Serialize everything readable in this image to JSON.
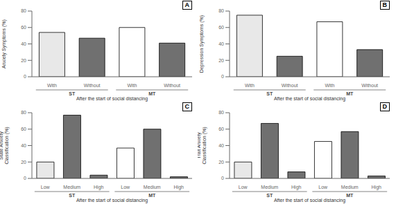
{
  "chart_data": [
    {
      "type": "bar",
      "title": "A",
      "ylabel": "Anxiety Symptoms (%)",
      "xlabel": "After the start of social distancing",
      "categories": [
        "With",
        "Without",
        "With",
        "Without"
      ],
      "groups": [
        "ST",
        "MT"
      ],
      "values": [
        54,
        47,
        60,
        41
      ],
      "colors": [
        "#e8e8e8",
        "#707070",
        "#ffffff",
        "#707070"
      ],
      "ylim": [
        0,
        80
      ],
      "yticks": [
        0,
        20,
        40,
        60,
        80
      ]
    },
    {
      "type": "bar",
      "title": "B",
      "ylabel": "Depression Symptoms (%)",
      "xlabel": "After the start of social distancing",
      "categories": [
        "With",
        "Without",
        "With",
        "Without"
      ],
      "groups": [
        "ST",
        "MT"
      ],
      "values": [
        75,
        25,
        67,
        33
      ],
      "colors": [
        "#e8e8e8",
        "#707070",
        "#ffffff",
        "#707070"
      ],
      "ylim": [
        0,
        80
      ],
      "yticks": [
        0,
        20,
        40,
        60,
        80
      ]
    },
    {
      "type": "bar",
      "title": "C",
      "ylabel": "State Anxiety\nClassification (%)",
      "xlabel": "After the start of social distancing",
      "categories": [
        "Low",
        "Medium",
        "High",
        "Low",
        "Medium",
        "High"
      ],
      "groups": [
        "ST",
        "MT"
      ],
      "values": [
        20,
        77,
        4,
        37,
        60,
        2
      ],
      "colors": [
        "#e8e8e8",
        "#707070",
        "#707070",
        "#ffffff",
        "#707070",
        "#707070"
      ],
      "ylim": [
        0,
        80
      ],
      "yticks": [
        0,
        20,
        40,
        60,
        80
      ]
    },
    {
      "type": "bar",
      "title": "D",
      "ylabel": "Trait Anxiety\nClassification (%)",
      "xlabel": "After the start of social distancing",
      "categories": [
        "Low",
        "Medium",
        "High",
        "Low",
        "Medium",
        "High"
      ],
      "groups": [
        "ST",
        "MT"
      ],
      "values": [
        20,
        67,
        8,
        45,
        57,
        3
      ],
      "colors": [
        "#e8e8e8",
        "#707070",
        "#707070",
        "#ffffff",
        "#707070",
        "#707070"
      ],
      "ylim": [
        0,
        80
      ],
      "yticks": [
        0,
        20,
        40,
        60,
        80
      ]
    }
  ]
}
